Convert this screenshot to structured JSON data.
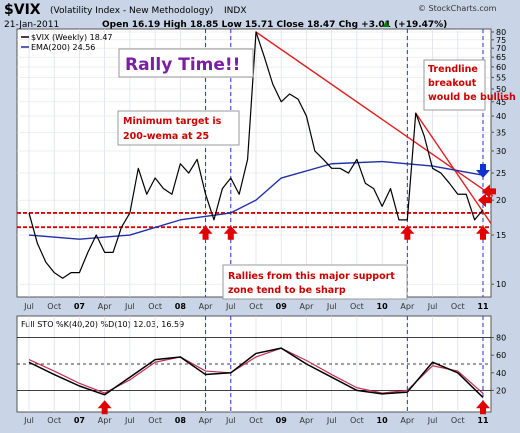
{
  "header": {
    "symbol": "$VIX",
    "name": "(Volatility Index - New Methodology)",
    "exchange": "INDX",
    "watermark": "© StockCharts.com",
    "date": "21-Jan-2011",
    "quote": "Open 16.19  High 18.85  Low 15.71  Close 18.47  Chg +3.01 (+19.47%)",
    "quote_arrow": "▲"
  },
  "legend": {
    "vix": "$VIX (Weekly) 18.47",
    "ema": "EMA(200) 24.56",
    "sto": "Full STO %K(40,20) %D(10) 12.03, 16.59"
  },
  "annotations": {
    "rally": "Rally Time!!",
    "target": "Minimum target is 200-wema at 25",
    "trendline": "Trendline breakout would be bullish",
    "rallies": "Rallies from this major support zone tend to be sharp"
  },
  "colors": {
    "price": "#000000",
    "ema": "#1f2fa8",
    "support": "#dd0000",
    "trendline": "#e02020",
    "marker": "#e00000",
    "blue_marker": "#1030d0",
    "sto_k": "#000000",
    "sto_d": "#c03050"
  },
  "chart_data": [
    {
      "type": "line",
      "title": "$VIX (Volatility Index - New Methodology)",
      "yscale": "log",
      "ylim": [
        9,
        82
      ],
      "y_ticks": [
        "80",
        "75",
        "70",
        "65",
        "60",
        "55",
        "50",
        "45",
        "40",
        "35",
        "30",
        "25",
        "20",
        "15",
        "10"
      ],
      "x_ticks": [
        "Jul",
        "Oct",
        "07",
        "Apr",
        "Jul",
        "Oct",
        "08",
        "Apr",
        "Jul",
        "Oct",
        "09",
        "Apr",
        "Jul",
        "Oct",
        "10",
        "Apr",
        "Jul",
        "Oct",
        "11"
      ],
      "series": [
        {
          "name": "$VIX (Weekly)",
          "x": [
            "2006-07",
            "2006-08",
            "2006-09",
            "2006-10",
            "2006-11",
            "2006-12",
            "2007-01",
            "2007-02",
            "2007-03",
            "2007-04",
            "2007-05",
            "2007-06",
            "2007-07",
            "2007-08",
            "2007-09",
            "2007-10",
            "2007-11",
            "2007-12",
            "2008-01",
            "2008-02",
            "2008-03",
            "2008-04",
            "2008-05",
            "2008-06",
            "2008-07",
            "2008-08",
            "2008-09",
            "2008-10",
            "2008-11",
            "2008-12",
            "2009-01",
            "2009-02",
            "2009-03",
            "2009-04",
            "2009-05",
            "2009-06",
            "2009-07",
            "2009-08",
            "2009-09",
            "2009-10",
            "2009-11",
            "2009-12",
            "2010-01",
            "2010-02",
            "2010-03",
            "2010-04",
            "2010-05",
            "2010-06",
            "2010-07",
            "2010-08",
            "2010-09",
            "2010-10",
            "2010-11",
            "2010-12",
            "2011-01"
          ],
          "values": [
            18,
            14,
            12,
            11,
            10.5,
            11,
            11,
            13,
            15,
            13,
            13,
            16,
            18,
            26,
            21,
            24,
            22,
            21,
            27,
            25,
            28,
            21,
            17,
            22,
            24,
            21,
            28,
            80,
            65,
            52,
            45,
            48,
            46,
            40,
            30,
            28,
            26,
            26,
            25,
            28,
            23,
            22,
            19,
            22,
            17,
            17,
            41,
            34,
            26,
            25,
            23,
            21,
            21,
            17,
            18.47
          ]
        },
        {
          "name": "EMA(200)",
          "x": [
            "2006-07",
            "2007-01",
            "2007-07",
            "2008-01",
            "2008-07",
            "2008-10",
            "2009-01",
            "2009-07",
            "2010-01",
            "2010-07",
            "2011-01"
          ],
          "values": [
            15,
            14.5,
            15,
            17,
            18,
            20,
            24,
            27,
            27.5,
            26.5,
            24.56
          ]
        }
      ],
      "support_zone": [
        16,
        18
      ],
      "trendline": {
        "x": [
          "2008-10",
          "2011-01"
        ],
        "values": [
          80,
          20
        ]
      },
      "annotations": [
        "Rally Time!!",
        "Minimum target is 200-wema at 25",
        "Trendline breakout would be bullish",
        "Rallies from this major support zone tend to be sharp"
      ]
    },
    {
      "type": "line",
      "title": "Full STO %K(40,20) %D(10) 12.03, 16.59",
      "ylim": [
        0,
        100
      ],
      "y_ticks": [
        "80",
        "60",
        "40",
        "20"
      ],
      "reference_lines": [
        80,
        50,
        20
      ],
      "series": [
        {
          "name": "%K(40,20)",
          "x": [
            "2006-07",
            "2006-10",
            "2007-01",
            "2007-04",
            "2007-07",
            "2007-10",
            "2008-01",
            "2008-04",
            "2008-07",
            "2008-10",
            "2009-01",
            "2009-04",
            "2009-07",
            "2009-10",
            "2010-01",
            "2010-04",
            "2010-07",
            "2010-10",
            "2011-01"
          ],
          "values": [
            52,
            38,
            25,
            15,
            35,
            55,
            58,
            38,
            40,
            62,
            68,
            50,
            35,
            20,
            16,
            18,
            52,
            40,
            12.03
          ]
        },
        {
          "name": "%D(10)",
          "x": [
            "2006-07",
            "2006-10",
            "2007-01",
            "2007-04",
            "2007-07",
            "2007-10",
            "2008-01",
            "2008-04",
            "2008-07",
            "2008-10",
            "2009-01",
            "2009-04",
            "2009-07",
            "2009-10",
            "2010-01",
            "2010-04",
            "2010-07",
            "2010-10",
            "2011-01"
          ],
          "values": [
            55,
            42,
            28,
            17,
            32,
            52,
            58,
            42,
            40,
            58,
            68,
            54,
            38,
            23,
            17,
            20,
            48,
            42,
            16.59
          ]
        }
      ]
    }
  ]
}
